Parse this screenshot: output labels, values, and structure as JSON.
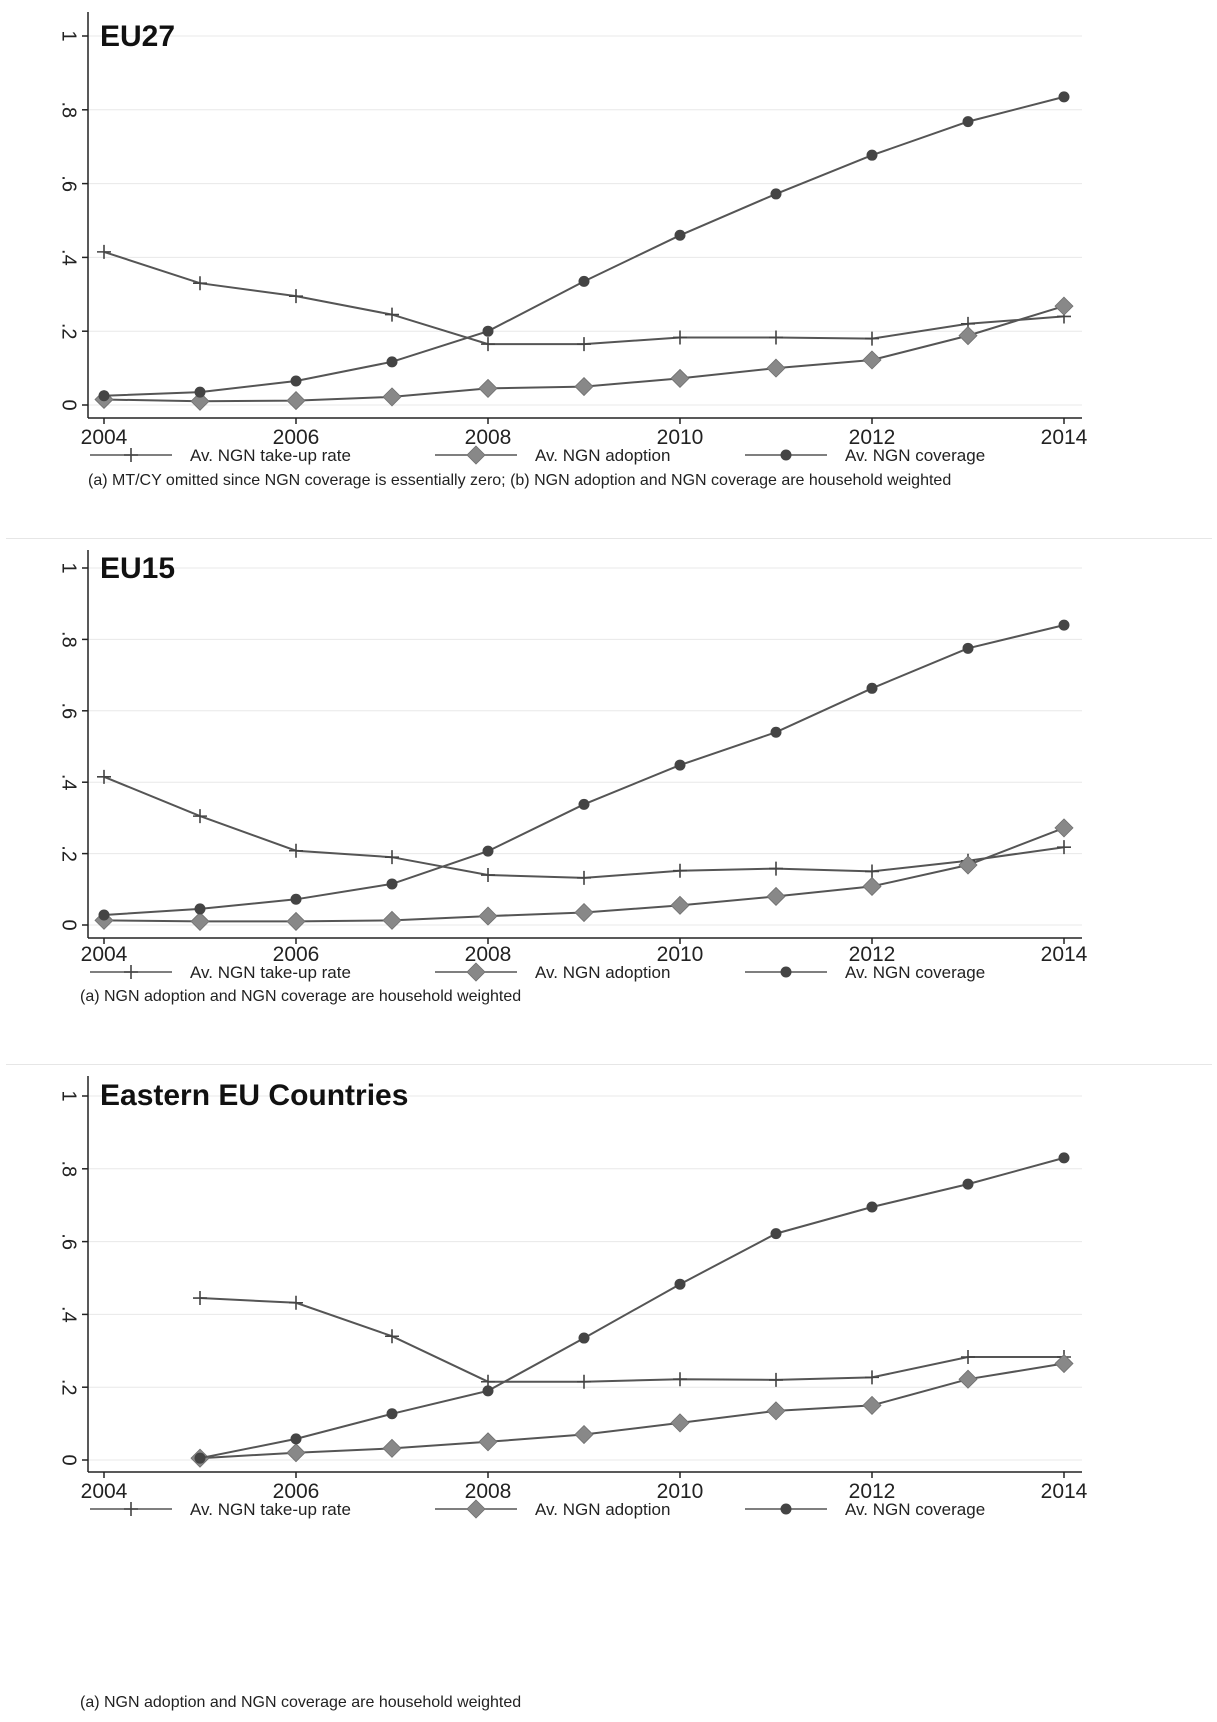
{
  "chart_data": [
    {
      "type": "line",
      "title": "EU27",
      "x": [
        2004,
        2005,
        2006,
        2007,
        2008,
        2009,
        2010,
        2011,
        2012,
        2013,
        2014
      ],
      "x_ticks": [
        "2004",
        "2006",
        "2008",
        "2010",
        "2012",
        "2014"
      ],
      "y_ticks": [
        "0",
        ".2",
        ".4",
        ".6",
        ".8",
        "1"
      ],
      "ylim": [
        0,
        1
      ],
      "grid": true,
      "legend_position": "bottom",
      "series": [
        {
          "name": "Av. NGN take-up rate",
          "marker": "plus",
          "values": [
            0.415,
            0.33,
            0.295,
            0.245,
            0.165,
            0.165,
            0.183,
            0.183,
            0.18,
            0.22,
            0.24
          ]
        },
        {
          "name": "Av. NGN adoption",
          "marker": "diamond",
          "values": [
            0.015,
            0.01,
            0.012,
            0.022,
            0.045,
            0.05,
            0.072,
            0.1,
            0.122,
            0.188,
            0.268
          ]
        },
        {
          "name": "Av. NGN coverage",
          "marker": "circle",
          "values": [
            0.025,
            0.035,
            0.065,
            0.117,
            0.2,
            0.335,
            0.46,
            0.572,
            0.677,
            0.768,
            0.835
          ]
        }
      ],
      "note": "(a) MT/CY omitted since NGN coverage is essentially zero; (b) NGN adoption and NGN coverage are household weighted"
    },
    {
      "type": "line",
      "title": "EU15",
      "x": [
        2004,
        2005,
        2006,
        2007,
        2008,
        2009,
        2010,
        2011,
        2012,
        2013,
        2014
      ],
      "x_ticks": [
        "2004",
        "2006",
        "2008",
        "2010",
        "2012",
        "2014"
      ],
      "y_ticks": [
        "0",
        ".2",
        ".4",
        ".6",
        ".8",
        "1"
      ],
      "ylim": [
        0,
        1
      ],
      "grid": true,
      "legend_position": "bottom",
      "series": [
        {
          "name": "Av. NGN take-up rate",
          "marker": "plus",
          "values": [
            0.415,
            0.305,
            0.208,
            0.19,
            0.14,
            0.132,
            0.152,
            0.158,
            0.15,
            0.18,
            0.218
          ]
        },
        {
          "name": "Av. NGN adoption",
          "marker": "diamond",
          "values": [
            0.013,
            0.01,
            0.01,
            0.013,
            0.025,
            0.035,
            0.055,
            0.08,
            0.108,
            0.168,
            0.272
          ]
        },
        {
          "name": "Av. NGN coverage",
          "marker": "circle",
          "values": [
            0.028,
            0.045,
            0.072,
            0.115,
            0.207,
            0.338,
            0.448,
            0.54,
            0.663,
            0.775,
            0.84
          ]
        }
      ],
      "note": "(a) NGN adoption and NGN coverage are household weighted"
    },
    {
      "type": "line",
      "title": "Eastern EU Countries",
      "x": [
        2004,
        2005,
        2006,
        2007,
        2008,
        2009,
        2010,
        2011,
        2012,
        2013,
        2014
      ],
      "x_ticks": [
        "2004",
        "2006",
        "2008",
        "2010",
        "2012",
        "2014"
      ],
      "y_ticks": [
        "0",
        ".2",
        ".4",
        ".6",
        ".8",
        "1"
      ],
      "ylim": [
        0,
        1
      ],
      "grid": true,
      "legend_position": "bottom",
      "series": [
        {
          "name": "Av. NGN take-up rate",
          "marker": "plus",
          "values": [
            null,
            0.445,
            0.432,
            0.34,
            0.215,
            0.215,
            0.222,
            0.22,
            0.227,
            0.283,
            0.283
          ]
        },
        {
          "name": "Av. NGN adoption",
          "marker": "diamond",
          "values": [
            null,
            0.005,
            0.02,
            0.032,
            0.05,
            0.07,
            0.102,
            0.135,
            0.15,
            0.222,
            0.265
          ]
        },
        {
          "name": "Av. NGN coverage",
          "marker": "circle",
          "values": [
            null,
            0.005,
            0.058,
            0.127,
            0.19,
            0.335,
            0.483,
            0.622,
            0.695,
            0.758,
            0.83
          ]
        }
      ],
      "note": "(a) NGN adoption and NGN coverage are household weighted"
    }
  ],
  "colors": {
    "line": "#555555",
    "marker": "#444444",
    "diamond_marker": "#888888",
    "grid": "#e8e8e8",
    "axis": "#222222"
  }
}
